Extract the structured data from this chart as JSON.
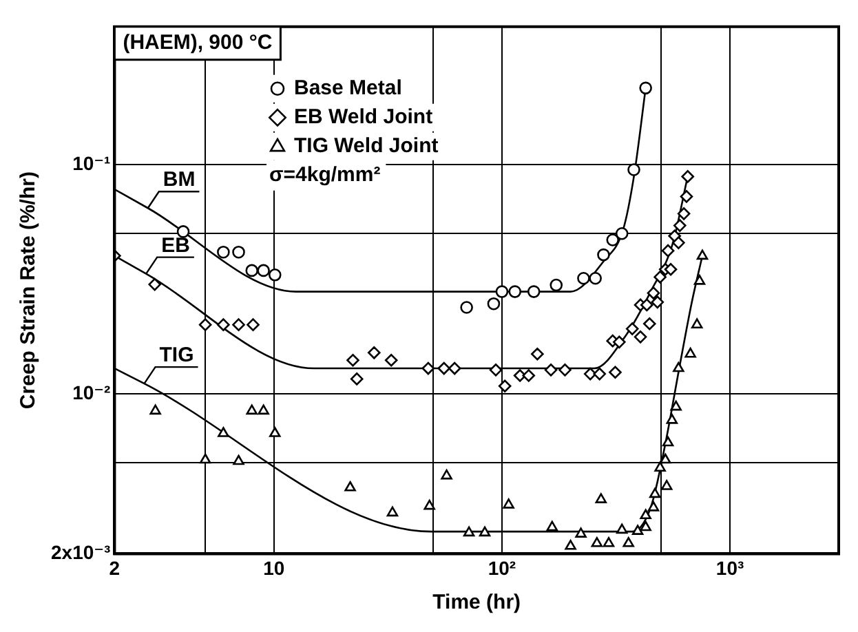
{
  "chart_data": {
    "type": "scatter",
    "title": "(HAEM), 900 °C",
    "xlabel": "Time (hr)",
    "ylabel": "Creep Strain Rate (%/hr)",
    "log": "xy",
    "grid": true,
    "legend": "top left",
    "xlim": [
      2,
      3000
    ],
    "ylim": [
      0.002,
      0.4
    ],
    "xticks": [
      2,
      10,
      {
        "value": 5,
        "label": null
      },
      {
        "value": 50,
        "label": null
      },
      {
        "value": 100,
        "label": "10²"
      },
      {
        "value": 500,
        "label": null
      },
      {
        "value": 1000,
        "label": "10³"
      }
    ],
    "yticks": [
      {
        "value": 0.002,
        "label": "2x10⁻³"
      },
      {
        "value": 0.005,
        "label": null
      },
      {
        "value": 0.01,
        "label": "10⁻²"
      },
      {
        "value": 0.05,
        "label": null
      },
      {
        "value": 0.1,
        "label": "10⁻¹"
      }
    ],
    "series": [
      {
        "name": "Base Metal",
        "marker": "circle",
        "color": "#000000",
        "x": [
          4.0,
          6.0,
          7.0,
          8.0,
          9.0,
          10.1,
          70,
          92,
          100,
          114,
          138,
          173,
          228,
          257,
          279,
          306,
          336,
          379,
          427
        ],
        "values": [
          0.051,
          0.0415,
          0.0415,
          0.0345,
          0.0345,
          0.033,
          0.0238,
          0.0247,
          0.0279,
          0.0279,
          0.0279,
          0.0298,
          0.0319,
          0.0319,
          0.0404,
          0.0469,
          0.05,
          0.095,
          0.216
        ]
      },
      {
        "name": "EB Weld Joint",
        "marker": "diamond",
        "color": "#000000",
        "x": [
          2,
          3.0,
          5.0,
          6.0,
          7.0,
          8.1,
          22.2,
          23.1,
          27.5,
          32.7,
          47.5,
          55.7,
          62,
          94,
          103,
          120,
          131,
          143,
          164,
          189,
          244,
          268,
          314,
          306,
          327,
          373,
          405,
          444,
          405,
          432,
          481,
          462,
          494,
          521,
          550,
          535,
          572,
          595,
          603,
          628,
          645,
          653
        ],
        "values": [
          0.04,
          0.03,
          0.02,
          0.02,
          0.02,
          0.02,
          0.014,
          0.0116,
          0.0151,
          0.014,
          0.0129,
          0.0129,
          0.0129,
          0.0127,
          0.0108,
          0.012,
          0.012,
          0.0149,
          0.0127,
          0.0127,
          0.0122,
          0.0122,
          0.0124,
          0.017,
          0.0168,
          0.0192,
          0.0177,
          0.0202,
          0.0244,
          0.0244,
          0.0251,
          0.0275,
          0.0323,
          0.0349,
          0.0349,
          0.0421,
          0.0488,
          0.0456,
          0.0542,
          0.0611,
          0.0726,
          0.0887
        ]
      },
      {
        "name": "TIG Weld Joint",
        "marker": "triangle",
        "color": "#000000",
        "x": [
          3.02,
          5.0,
          6.0,
          7.0,
          8.0,
          9.0,
          10.1,
          21.6,
          33.1,
          48.1,
          57.2,
          71.7,
          84.1,
          107,
          166,
          200,
          222,
          261,
          294,
          272,
          336,
          359,
          394,
          427,
          427,
          462,
          469,
          528,
          494,
          521,
          535,
          557,
          580,
          595,
          671,
          717,
          736,
          757
        ],
        "values": [
          0.00841,
          0.00514,
          0.00671,
          0.00507,
          0.00841,
          0.00841,
          0.00671,
          0.00389,
          0.00302,
          0.00323,
          0.00438,
          0.00247,
          0.00247,
          0.00327,
          0.00261,
          0.00216,
          0.00244,
          0.00222,
          0.00222,
          0.00345,
          0.00254,
          0.00222,
          0.00251,
          0.00261,
          0.00294,
          0.00318,
          0.00364,
          0.00394,
          0.00474,
          0.00514,
          0.00611,
          0.00766,
          0.00875,
          0.0129,
          0.0149,
          0.02,
          0.031,
          0.0399
        ]
      },
      {
        "type": "line",
        "marker": "none",
        "color": "#000000",
        "x": [
          2,
          2.8,
          12.5,
          200,
          280,
          340,
          380,
          427
        ],
        "values": [
          0.078,
          0.0646,
          0.0279,
          0.0279,
          0.038,
          0.052,
          0.09,
          0.216
        ]
      },
      {
        "type": "line",
        "marker": "none",
        "color": "#000000",
        "x": [
          2,
          2.75,
          15,
          254,
          350,
          450,
          560,
          653
        ],
        "values": [
          0.04,
          0.0334,
          0.0129,
          0.0129,
          0.018,
          0.028,
          0.045,
          0.089
        ]
      },
      {
        "type": "line",
        "marker": "none",
        "color": "#000000",
        "x": [
          2,
          2.7,
          49,
          373,
          450,
          520,
          600,
          680,
          757
        ],
        "values": [
          0.0129,
          0.01107,
          0.0025,
          0.0025,
          0.0032,
          0.006,
          0.013,
          0.025,
          0.04
        ]
      }
    ],
    "annotations": [
      "σ=4kg/mm²",
      {
        "text": "BM",
        "x": 2.8,
        "y": 0.0646
      },
      {
        "text": "EB",
        "x": 2.75,
        "y": 0.0334
      },
      {
        "text": "TIG",
        "x": 2.7,
        "y": 0.01107
      }
    ]
  }
}
